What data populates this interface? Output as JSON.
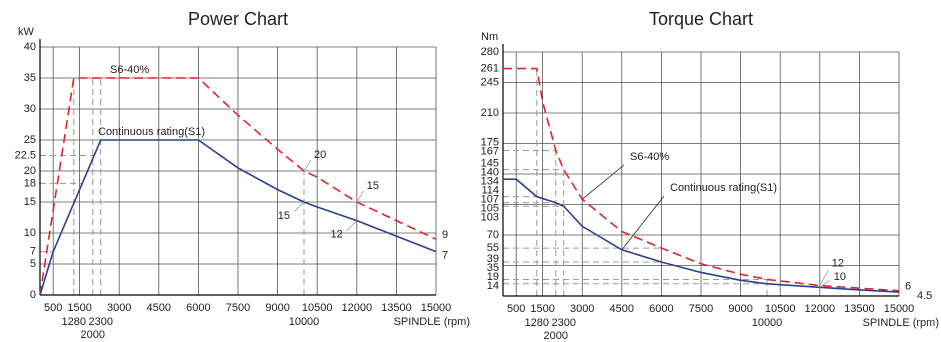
{
  "chart_data": [
    {
      "type": "line",
      "title": "Power Chart",
      "y_label": "kW",
      "x_label": "SPINDLE (rpm)",
      "xlim": [
        0,
        15000
      ],
      "xticks": [
        500,
        1500,
        3000,
        4500,
        6000,
        7500,
        9000,
        10500,
        12000,
        13500,
        15000
      ],
      "ref_xticks": [
        1280,
        2000,
        2300,
        10000
      ],
      "ylim": [
        0,
        40
      ],
      "yticks": [
        0,
        5,
        10,
        15,
        20,
        25,
        30,
        35,
        40
      ],
      "ref_yticks": [
        7,
        18,
        22.5
      ],
      "grid": true,
      "series": [
        {
          "name": "S6-40%",
          "color": "#e0242b",
          "dashed": true,
          "x": [
            0,
            1280,
            6000,
            7500,
            9000,
            10000,
            10500,
            12000,
            13500,
            15000
          ],
          "values": [
            0,
            35,
            35,
            29,
            23.5,
            20,
            19,
            15,
            12,
            9
          ],
          "value_labels": [
            null,
            null,
            null,
            null,
            null,
            "20",
            null,
            "15",
            null,
            "9"
          ]
        },
        {
          "name": "Continuous rating(S1)",
          "color": "#2b3f93",
          "dashed": false,
          "x": [
            0,
            500,
            2300,
            6000,
            7500,
            9000,
            10000,
            10500,
            12000,
            13500,
            15000
          ],
          "values": [
            0,
            7,
            25,
            25,
            20.5,
            17,
            15,
            14.2,
            12,
            9.5,
            7
          ],
          "value_labels": [
            null,
            null,
            null,
            null,
            null,
            null,
            "15",
            null,
            "12",
            null,
            "7"
          ]
        }
      ]
    },
    {
      "type": "line",
      "title": "Torque Chart",
      "y_label": "Nm",
      "x_label": "SPINDLE (rpm)",
      "xlim": [
        0,
        15000
      ],
      "xticks": [
        500,
        1500,
        3000,
        4500,
        6000,
        7500,
        9000,
        10500,
        12000,
        13500,
        15000
      ],
      "ref_xticks": [
        1280,
        2000,
        2300,
        10000
      ],
      "ylim": [
        0,
        280
      ],
      "yticks": [
        35,
        70,
        105,
        140,
        175,
        210,
        245,
        280
      ],
      "ref_yticks": [
        14,
        19,
        39,
        55,
        103,
        107,
        114,
        134,
        145,
        167,
        261
      ],
      "grid": true,
      "series": [
        {
          "name": "S6-40%",
          "color": "#e0242b",
          "dashed": true,
          "x": [
            0,
            1280,
            1500,
            2000,
            2300,
            3000,
            4500,
            6000,
            7500,
            9000,
            10000,
            12000,
            13500,
            15000
          ],
          "values": [
            261,
            261,
            223,
            167,
            145,
            111,
            74,
            55,
            37,
            25,
            19,
            12,
            9,
            6
          ],
          "value_labels": [
            null,
            null,
            null,
            null,
            null,
            null,
            null,
            null,
            null,
            null,
            null,
            "12",
            null,
            "6"
          ]
        },
        {
          "name": "Continuous rating(S1)",
          "color": "#2b3f93",
          "dashed": false,
          "x": [
            0,
            500,
            1280,
            2000,
            2300,
            3000,
            4500,
            6000,
            7500,
            9000,
            10000,
            12000,
            13500,
            15000
          ],
          "values": [
            134,
            134,
            114,
            107,
            103,
            80,
            53,
            39,
            27,
            18,
            14,
            10,
            7,
            4.5
          ],
          "value_labels": [
            null,
            null,
            null,
            null,
            null,
            null,
            null,
            null,
            null,
            null,
            null,
            "10",
            null,
            "4.5"
          ]
        }
      ]
    }
  ]
}
